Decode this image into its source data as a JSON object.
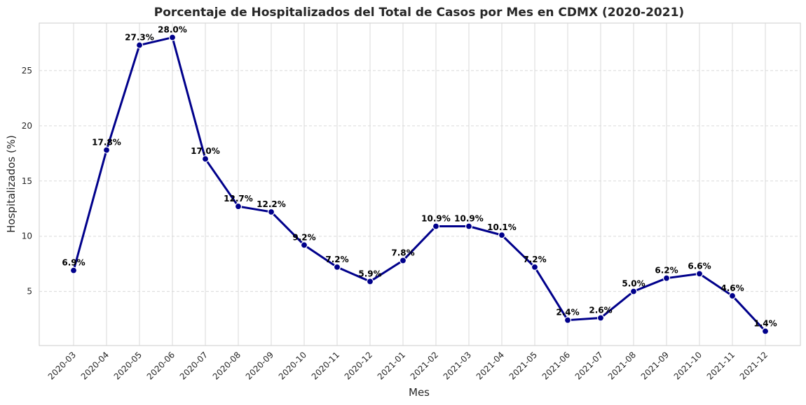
{
  "chart_data": {
    "type": "line",
    "title": "Porcentaje de Hospitalizados del Total de Casos por Mes en CDMX (2020-2021)",
    "xlabel": "Mes",
    "ylabel": "Hospitalizados (%)",
    "categories": [
      "2020-03",
      "2020-04",
      "2020-05",
      "2020-06",
      "2020-07",
      "2020-08",
      "2020-09",
      "2020-10",
      "2020-11",
      "2020-12",
      "2021-01",
      "2021-02",
      "2021-03",
      "2021-04",
      "2021-05",
      "2021-06",
      "2021-07",
      "2021-08",
      "2021-09",
      "2021-10",
      "2021-11",
      "2021-12"
    ],
    "values": [
      6.9,
      17.8,
      27.3,
      28.0,
      17.0,
      12.7,
      12.2,
      9.2,
      7.2,
      5.9,
      7.8,
      10.9,
      10.9,
      10.1,
      7.2,
      2.4,
      2.6,
      5.0,
      6.2,
      6.6,
      4.6,
      1.4
    ],
    "data_labels": [
      "6.9%",
      "17.8%",
      "27.3%",
      "28.0%",
      "17.0%",
      "12.7%",
      "12.2%",
      "9.2%",
      "7.2%",
      "5.9%",
      "7.8%",
      "10.9%",
      "10.9%",
      "10.1%",
      "7.2%",
      "2.4%",
      "2.6%",
      "5.0%",
      "6.2%",
      "6.6%",
      "4.6%",
      "1.4%"
    ],
    "yticks": [
      "5",
      "10",
      "15",
      "20",
      "25"
    ],
    "ylim": [
      0.1,
      29.3
    ],
    "grid": true,
    "line_color": "#00008b",
    "marker_color": "#00008b"
  }
}
